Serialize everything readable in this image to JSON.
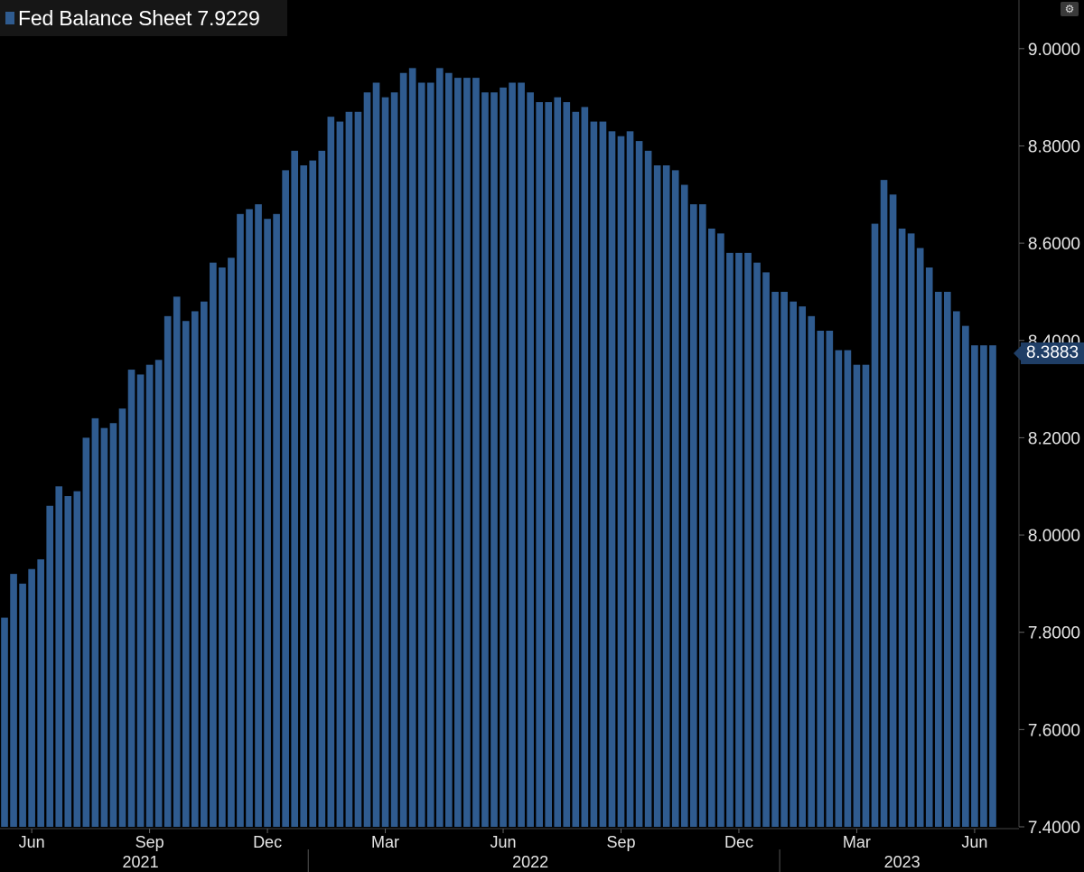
{
  "chart_data": {
    "type": "bar",
    "title": "Fed Balance Sheet 7.9229",
    "last_value_label": "8.3883",
    "ylim": [
      7.4,
      9.1
    ],
    "y_ticks": [
      "7.4000",
      "7.6000",
      "7.8000",
      "8.0000",
      "8.2000",
      "8.4000",
      "8.6000",
      "8.8000",
      "9.0000"
    ],
    "x_month_ticks": [
      {
        "label": "Jun",
        "index": 3
      },
      {
        "label": "Sep",
        "index": 16
      },
      {
        "label": "Dec",
        "index": 29
      },
      {
        "label": "Mar",
        "index": 42
      },
      {
        "label": "Jun",
        "index": 55
      },
      {
        "label": "Sep",
        "index": 68
      },
      {
        "label": "Dec",
        "index": 81
      },
      {
        "label": "Mar",
        "index": 94
      },
      {
        "label": "Jun",
        "index": 107
      }
    ],
    "x_year_labels": [
      {
        "label": "2021",
        "index": 15
      },
      {
        "label": "2022",
        "index": 58
      },
      {
        "label": "2023",
        "index": 99
      }
    ],
    "x_year_separators": [
      33,
      85
    ],
    "color": "#2f5b8f",
    "values": [
      7.83,
      7.92,
      7.9,
      7.93,
      7.95,
      8.06,
      8.1,
      8.08,
      8.09,
      8.2,
      8.24,
      8.22,
      8.23,
      8.26,
      8.34,
      8.33,
      8.35,
      8.36,
      8.45,
      8.49,
      8.44,
      8.46,
      8.48,
      8.56,
      8.55,
      8.57,
      8.66,
      8.67,
      8.68,
      8.65,
      8.66,
      8.75,
      8.79,
      8.76,
      8.77,
      8.79,
      8.86,
      8.85,
      8.87,
      8.87,
      8.91,
      8.93,
      8.9,
      8.91,
      8.95,
      8.96,
      8.93,
      8.93,
      8.96,
      8.95,
      8.94,
      8.94,
      8.94,
      8.91,
      8.91,
      8.92,
      8.93,
      8.93,
      8.91,
      8.89,
      8.89,
      8.9,
      8.89,
      8.87,
      8.88,
      8.85,
      8.85,
      8.83,
      8.82,
      8.83,
      8.81,
      8.79,
      8.76,
      8.76,
      8.75,
      8.72,
      8.68,
      8.68,
      8.63,
      8.62,
      8.58,
      8.58,
      8.58,
      8.56,
      8.54,
      8.5,
      8.5,
      8.48,
      8.47,
      8.45,
      8.42,
      8.42,
      8.38,
      8.38,
      8.35,
      8.35,
      8.64,
      8.73,
      8.7,
      8.63,
      8.62,
      8.59,
      8.55,
      8.5,
      8.5,
      8.46,
      8.43,
      8.39,
      8.39,
      8.39
    ]
  },
  "ui": {
    "gear_icon": "gear-icon"
  }
}
